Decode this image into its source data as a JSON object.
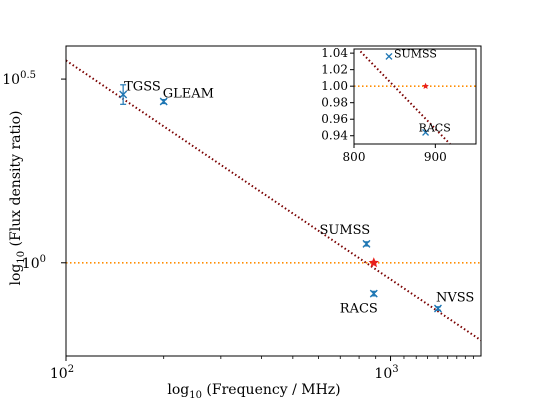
{
  "chart_data": [
    {
      "type": "scatter",
      "xlabel_prefix": "log",
      "xlabel_sub": "10",
      "xlabel_rest": " (Frequency / MHz)",
      "ylabel_prefix": "log",
      "ylabel_sub": "10",
      "ylabel_rest": " (Flux density ratio)",
      "xscale": "log",
      "yscale": "log",
      "xlim": [
        100,
        1900
      ],
      "ylim": [
        0.84,
        1.5
      ],
      "x_ticks": [
        {
          "value": 100,
          "base": "10",
          "exp": "2"
        },
        {
          "value": 1000,
          "base": "10",
          "exp": "3"
        }
      ],
      "y_ticks": [
        {
          "value": 1.0,
          "base": "10",
          "exp": "0"
        },
        {
          "value": 1.41,
          "base": "10",
          "exp": "0.5"
        }
      ],
      "points": [
        {
          "label": "TGSS",
          "x": 150,
          "y": 1.37,
          "yerr": 0.025,
          "color": "#1f77b4",
          "marker": "x"
        },
        {
          "label": "GLEAM",
          "x": 200,
          "y": 1.352,
          "yerr": 0.005,
          "color": "#1f77b4",
          "marker": "x"
        },
        {
          "label": "SUMSS",
          "x": 843,
          "y": 1.036,
          "yerr": 0.004,
          "color": "#1f77b4",
          "marker": "x"
        },
        {
          "label": "RACS",
          "x": 888,
          "y": 0.944,
          "yerr": 0.004,
          "color": "#1f77b4",
          "marker": "x"
        },
        {
          "label": "NVSS",
          "x": 1400,
          "y": 0.918,
          "yerr": 0.003,
          "color": "#1f77b4",
          "marker": "x"
        }
      ],
      "reference_star": {
        "x": 888,
        "y": 1.0,
        "color": "#e8201c",
        "marker": "star"
      },
      "hline": {
        "y": 1.0,
        "color": "#ff8c00",
        "style": "dotted"
      },
      "fit_line": {
        "color": "#7a0000",
        "style": "dotted",
        "x1": 100,
        "y1": 1.46,
        "x2": 1900,
        "y2": 0.865
      }
    },
    {
      "type": "scatter",
      "inset": true,
      "xlim": [
        800,
        950
      ],
      "ylim": [
        0.93,
        1.045
      ],
      "x_ticks": [
        "800",
        "900"
      ],
      "x_tick_values": [
        800,
        900
      ],
      "y_ticks": [
        "1.04",
        "1.02",
        "1.00",
        "0.98",
        "0.96",
        "0.94"
      ],
      "y_tick_values": [
        1.04,
        1.02,
        1.0,
        0.98,
        0.96,
        0.94
      ],
      "points": [
        {
          "label": "SUMSS",
          "x": 843,
          "y": 1.036,
          "color": "#1f77b4",
          "marker": "x"
        },
        {
          "label": "RACS",
          "x": 888,
          "y": 0.944,
          "color": "#1f77b4",
          "marker": "x"
        }
      ],
      "reference_star": {
        "x": 888,
        "y": 1.0,
        "color": "#e8201c",
        "marker": "star"
      },
      "hline": {
        "y": 1.0,
        "color": "#ff8c00",
        "style": "dotted"
      },
      "fit_line": {
        "color": "#7a0000",
        "style": "dotted",
        "x1": 808,
        "y1": 1.042,
        "x2": 918,
        "y2": 0.93
      }
    }
  ]
}
